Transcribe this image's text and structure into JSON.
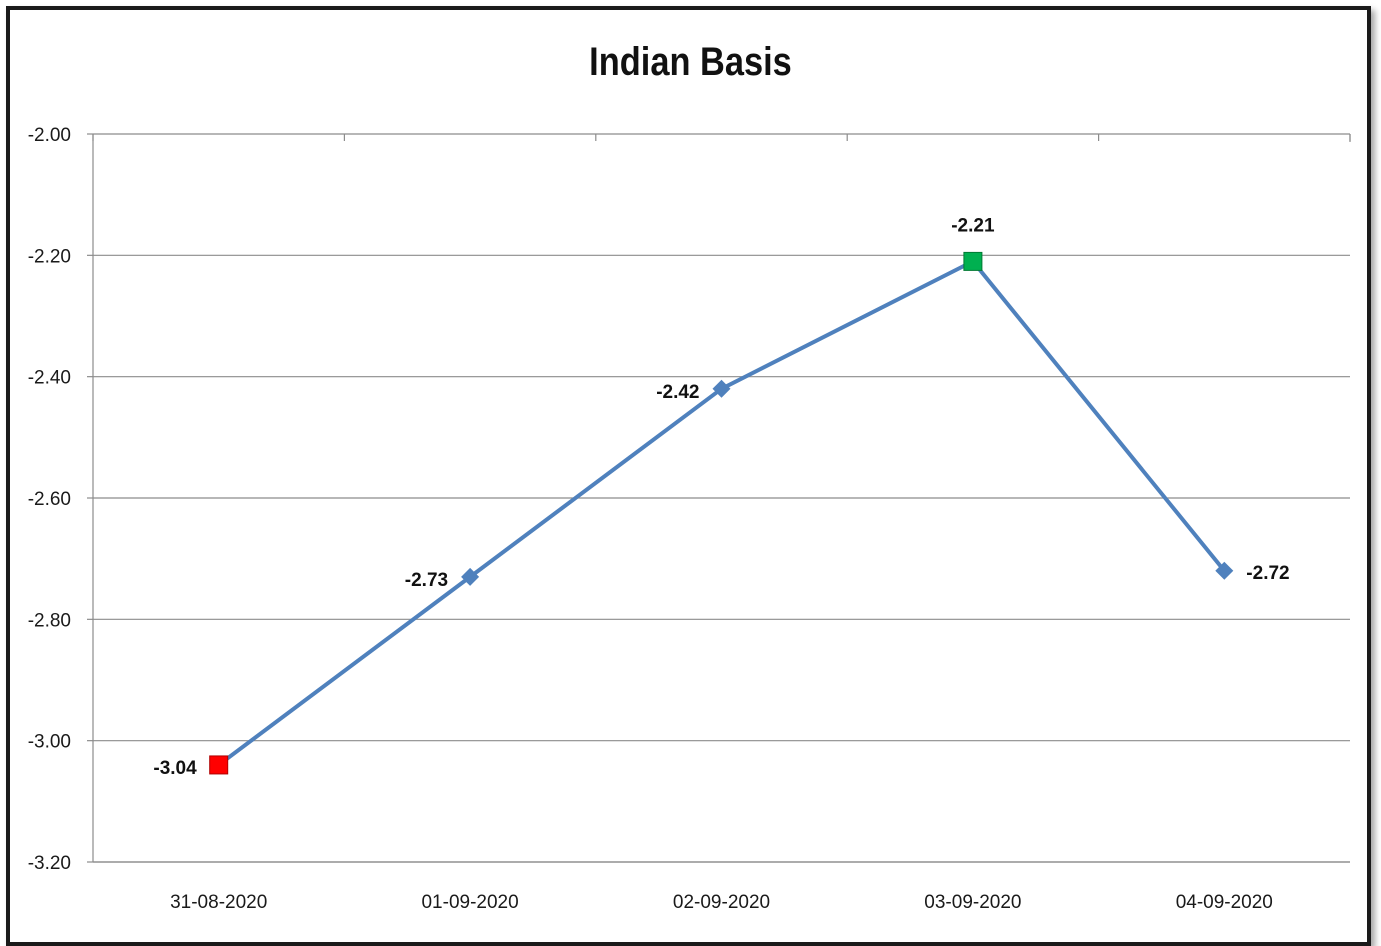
{
  "chart_data": {
    "type": "line",
    "title": "Indian Basis",
    "xlabel": "",
    "ylabel": "",
    "categories": [
      "31-08-2020",
      "01-09-2020",
      "02-09-2020",
      "03-09-2020",
      "04-09-2020"
    ],
    "series": [
      {
        "values": [
          -3.04,
          -2.73,
          -2.42,
          -2.21,
          -2.72
        ],
        "color": "#4f81bd"
      }
    ],
    "data_labels": [
      "-3.04",
      "-2.73",
      "-2.42",
      "-2.21",
      "-2.72"
    ],
    "ylim": [
      -3.2,
      -2.0
    ],
    "yticks": [
      "-2.00",
      "-2.20",
      "-2.40",
      "-2.60",
      "-2.80",
      "-3.00",
      "-3.20"
    ],
    "ytick_values": [
      -2.0,
      -2.2,
      -2.4,
      -2.6,
      -2.8,
      -3.0,
      -3.2
    ],
    "grid": true,
    "legend": "none",
    "highlight": {
      "min_marker_color": "#ff0000",
      "max_marker_color": "#00b050"
    }
  }
}
